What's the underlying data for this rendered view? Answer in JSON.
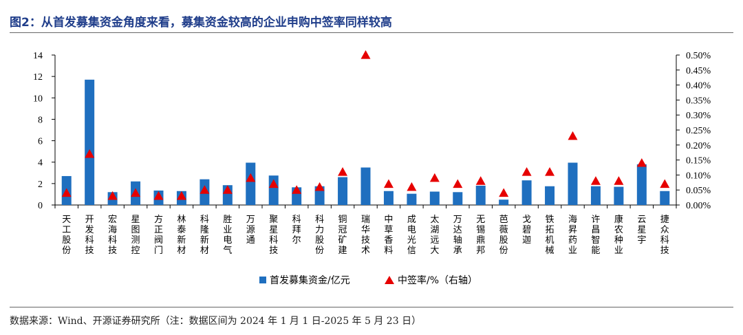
{
  "title": "图2：从首发募集资金角度来看，募集资金较高的企业申购中签率同样较高",
  "source": "数据来源：Wind、开源证券研究所（注：数据区间为 2024 年 1 月 1 日-2025 年 5 月 23 日）",
  "colors": {
    "bar": "#1f6fbf",
    "marker": "#e60000",
    "title": "#1f3d8a"
  },
  "chart_data": {
    "type": "bar",
    "categories": [
      "天工股份",
      "开发科技",
      "宏海科技",
      "星图测控",
      "方正阀门",
      "林泰新材",
      "科隆新材",
      "胜业电气",
      "万源通",
      "聚星科技",
      "科拜尔",
      "科力股份",
      "铜冠矿建",
      "瑞华技术",
      "中草香料",
      "成电光信",
      "太湖远大",
      "万达轴承",
      "无锡鼎邦",
      "芭薇股份",
      "戈碧迦",
      "铁拓机械",
      "海昇药业",
      "许昌智能",
      "康农种业",
      "云星宇",
      "捷众科技"
    ],
    "series": [
      {
        "name": "首发募集资金/亿元",
        "axis": "left",
        "type": "bar",
        "values": [
          2.7,
          11.7,
          1.2,
          2.2,
          1.35,
          1.3,
          2.4,
          1.85,
          3.95,
          2.75,
          1.65,
          1.75,
          2.6,
          3.5,
          1.3,
          1.05,
          1.25,
          1.2,
          1.8,
          0.5,
          2.3,
          1.75,
          3.95,
          1.75,
          1.7,
          3.8,
          1.3
        ]
      },
      {
        "name": "中签率/%（右轴）",
        "axis": "right",
        "type": "scatter-triangle",
        "values": [
          0.04,
          0.17,
          0.03,
          0.04,
          0.03,
          0.03,
          0.05,
          0.05,
          0.09,
          0.07,
          0.05,
          0.06,
          0.11,
          0.5,
          0.07,
          0.06,
          0.09,
          0.07,
          0.08,
          0.04,
          0.11,
          0.11,
          0.23,
          0.08,
          0.08,
          0.14,
          0.07
        ]
      }
    ],
    "left_axis": {
      "ylim": [
        0,
        14
      ],
      "ticks": [
        "0",
        "2",
        "4",
        "6",
        "8",
        "10",
        "12",
        "14"
      ]
    },
    "right_axis": {
      "ylim": [
        0,
        0.5
      ],
      "ticks": [
        "0.00%",
        "0.05%",
        "0.10%",
        "0.15%",
        "0.20%",
        "0.25%",
        "0.30%",
        "0.35%",
        "0.40%",
        "0.45%",
        "0.50%"
      ]
    },
    "legend": [
      "首发募集资金/亿元",
      "中签率/%（右轴）"
    ],
    "legend_position": "bottom",
    "grid": false
  }
}
